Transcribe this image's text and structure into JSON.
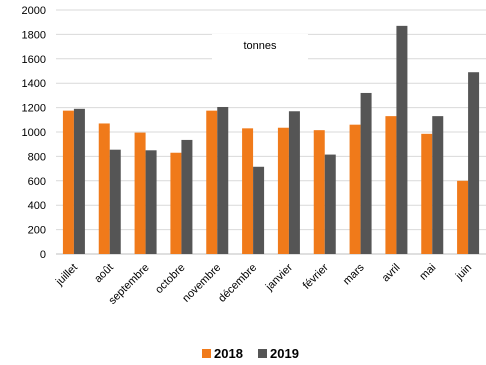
{
  "chart_data": {
    "type": "bar",
    "unit_label": "tonnes",
    "categories": [
      "juillet",
      "août",
      "septembre",
      "octobre",
      "novembre",
      "décembre",
      "janvier",
      "février",
      "mars",
      "avril",
      "mai",
      "juin"
    ],
    "series": [
      {
        "name": "2018",
        "color": "#F07A1A",
        "values": [
          1175,
          1070,
          995,
          830,
          1175,
          1030,
          1035,
          1015,
          1060,
          1130,
          985,
          600
        ]
      },
      {
        "name": "2019",
        "color": "#555555",
        "values": [
          1190,
          855,
          850,
          935,
          1205,
          715,
          1170,
          815,
          1320,
          1870,
          1130,
          1490
        ]
      }
    ],
    "yticks": [
      0,
      200,
      400,
      600,
      800,
      1000,
      1200,
      1400,
      1600,
      1800,
      2000
    ],
    "ylim": [
      0,
      2000
    ],
    "grid": true,
    "legend_position": "bottom"
  }
}
